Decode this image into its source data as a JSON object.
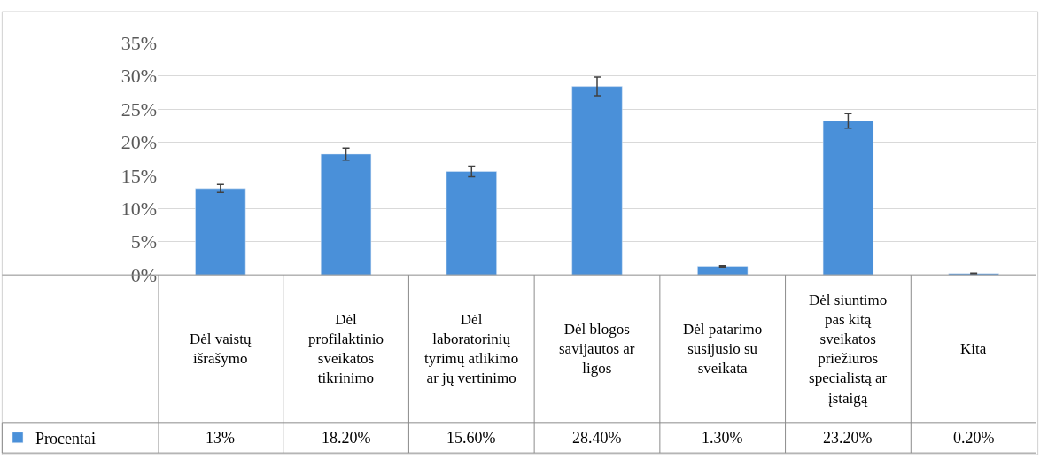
{
  "chart_data": {
    "type": "bar",
    "categories": [
      "Dėl vaistų išrašymo",
      "Dėl profilaktinio sveikatos tikrinimo",
      "Dėl laboratorinių tyrimų atlikimo ar jų vertinimo",
      "Dėl blogos savijautos ar ligos",
      "Dėl patarimo susijusio su sveikata",
      "Dėl siuntimo pas kitą sveikatos priežiūros specialistą ar įstaigą",
      "Kita"
    ],
    "series": [
      {
        "name": "Procentai",
        "color": "#4a90d9",
        "values": [
          13,
          18.2,
          15.6,
          28.4,
          1.3,
          23.2,
          0.2
        ],
        "errors": [
          0.6,
          0.9,
          0.8,
          1.4,
          0.1,
          1.1,
          0.05
        ],
        "value_labels": [
          "13%",
          "18.20%",
          "15.60%",
          "28.40%",
          "1.30%",
          "23.20%",
          "0.20%"
        ]
      }
    ],
    "ylim": [
      0,
      35
    ],
    "yticks": [
      {
        "value": 0,
        "label": "0%"
      },
      {
        "value": 5,
        "label": "5%"
      },
      {
        "value": 10,
        "label": "10%"
      },
      {
        "value": 15,
        "label": "15%"
      },
      {
        "value": 20,
        "label": "20%"
      },
      {
        "value": 25,
        "label": "25%"
      },
      {
        "value": 30,
        "label": "30%"
      },
      {
        "value": 35,
        "label": "35%"
      }
    ],
    "grid": "y",
    "legend": "bottom left"
  }
}
